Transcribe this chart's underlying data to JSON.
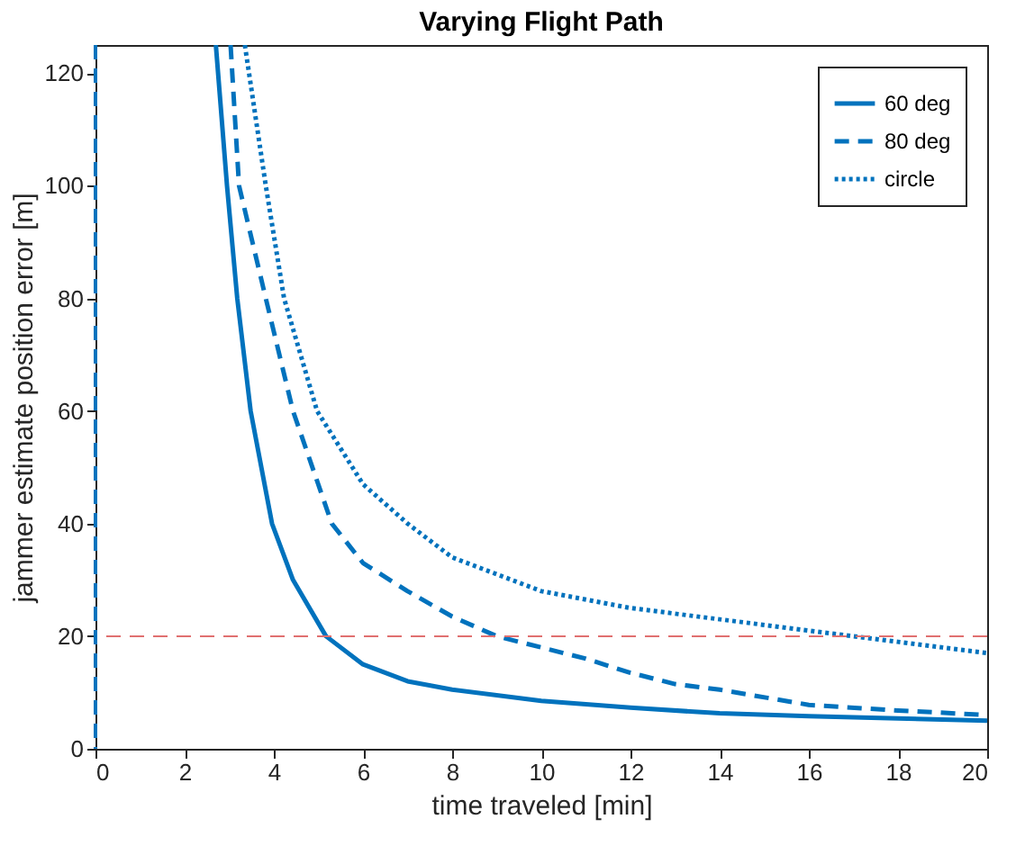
{
  "chart_data": {
    "type": "line",
    "title": "Varying Flight Path",
    "xlabel": "time traveled [min]",
    "ylabel": "jammer estimate position error [m]",
    "xlim": [
      0,
      20
    ],
    "ylim": [
      0,
      125
    ],
    "xticks": [
      0,
      2,
      4,
      6,
      8,
      10,
      12,
      14,
      16,
      18,
      20
    ],
    "yticks": [
      0,
      20,
      40,
      60,
      80,
      100,
      120
    ],
    "grid": false,
    "legend": "top right",
    "marker": "none",
    "series": [
      {
        "name": "60 deg",
        "color": "#0072bd",
        "line_style": "solid",
        "x": [
          2.7,
          2.95,
          3.18,
          3.48,
          3.96,
          4.43,
          5.17,
          6,
          7,
          8,
          10,
          12,
          14,
          16,
          18,
          20
        ],
        "values": [
          125,
          100,
          80,
          60,
          40,
          30,
          20,
          15,
          12,
          10.5,
          8.5,
          7.3,
          6.3,
          5.8,
          5.4,
          5
        ]
      },
      {
        "name": "80 deg",
        "color": "#0072bd",
        "line_style": "dashed",
        "x": [
          3.03,
          3.22,
          3.82,
          4.43,
          5.3,
          6,
          7,
          8,
          9,
          10,
          11,
          12,
          13,
          14,
          16,
          18,
          20
        ],
        "values": [
          125,
          100,
          80,
          60,
          40,
          33,
          28,
          23.5,
          20,
          18,
          16,
          13.5,
          11.5,
          10.5,
          7.8,
          6.8,
          6
        ]
      },
      {
        "name": "circle",
        "color": "#0072bd",
        "line_style": "dotted",
        "x": [
          3.35,
          3.82,
          4.23,
          4.97,
          6,
          7,
          8,
          9,
          10,
          12,
          14,
          16,
          17,
          18,
          19,
          20
        ],
        "values": [
          125,
          100,
          80,
          60,
          47,
          40,
          34,
          31,
          28,
          25,
          23,
          21,
          20,
          19,
          18,
          17
        ]
      }
    ],
    "ref_lines": [
      {
        "axis": "y",
        "value": 20,
        "color": "#e07070",
        "line_style": "dashed"
      },
      {
        "axis": "x",
        "value": 0,
        "color": "#0072bd",
        "line_style": "dashed"
      }
    ]
  }
}
